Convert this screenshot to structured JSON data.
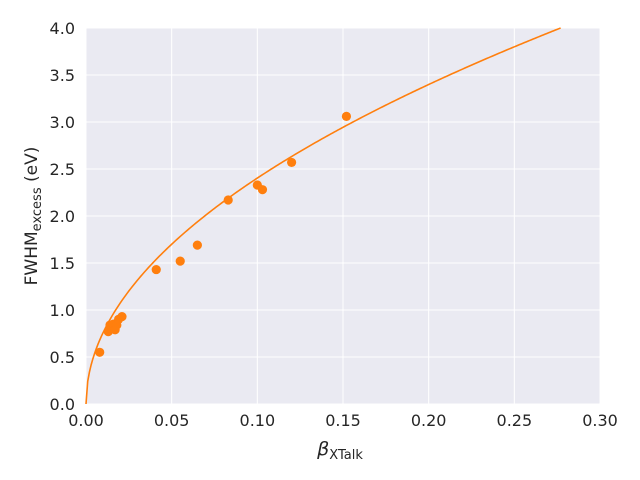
{
  "chart_data": {
    "type": "scatter",
    "xlabel_main": "β",
    "xlabel_sub": "XTalk",
    "ylabel_main": "FWHM",
    "ylabel_sub": "excess",
    "ylabel_unit": " (eV)",
    "xlim": [
      0.0,
      0.3
    ],
    "ylim": [
      0.0,
      4.0
    ],
    "xticks": [
      "0.00",
      "0.05",
      "0.10",
      "0.15",
      "0.20",
      "0.25",
      "0.30"
    ],
    "yticks": [
      "0.0",
      "0.5",
      "1.0",
      "1.5",
      "2.0",
      "2.5",
      "3.0",
      "3.5",
      "4.0"
    ],
    "grid": true,
    "color": "#ff7f0e",
    "background": "#eaeaf2",
    "series": [
      {
        "points": [
          [
            0.008,
            0.55
          ],
          [
            0.013,
            0.77
          ],
          [
            0.014,
            0.84
          ],
          [
            0.015,
            0.8
          ],
          [
            0.016,
            0.85
          ],
          [
            0.017,
            0.79
          ],
          [
            0.018,
            0.84
          ],
          [
            0.019,
            0.9
          ],
          [
            0.021,
            0.93
          ],
          [
            0.041,
            1.43
          ],
          [
            0.055,
            1.52
          ],
          [
            0.065,
            1.69
          ],
          [
            0.083,
            2.17
          ],
          [
            0.1,
            2.33
          ],
          [
            0.103,
            2.28
          ],
          [
            0.12,
            2.57
          ],
          [
            0.152,
            3.06
          ]
        ]
      }
    ],
    "fit": {
      "model": "a*sqrt(x)",
      "a": 7.6
    }
  }
}
